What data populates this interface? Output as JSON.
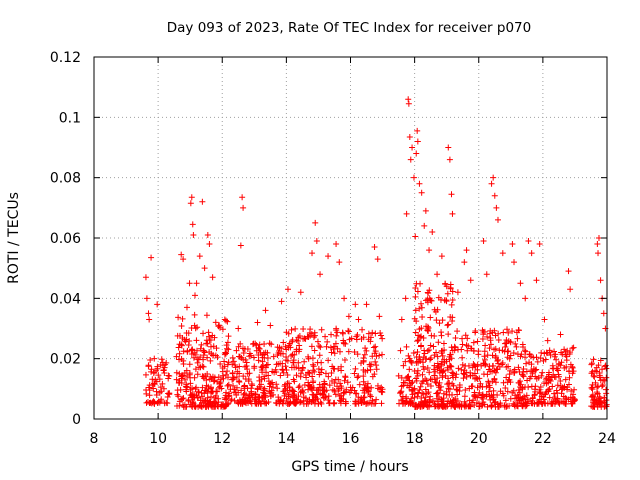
{
  "chart_data": {
    "type": "scatter",
    "title": "Day 093 of 2023, Rate Of TEC Index for receiver p070",
    "xlabel": "GPS time / hours",
    "ylabel": "ROTI / TECUs",
    "xlim": [
      8,
      24
    ],
    "ylim": [
      0,
      0.12
    ],
    "xticks": [
      8,
      10,
      12,
      14,
      16,
      18,
      20,
      22,
      24
    ],
    "xtick_labels": [
      "8",
      "10",
      "12",
      "14",
      "16",
      "18",
      "20",
      "22",
      "24"
    ],
    "yticks": [
      0,
      0.02,
      0.04,
      0.06,
      0.08,
      0.1,
      0.12
    ],
    "ytick_labels": [
      "0",
      "0.02",
      "0.04",
      "0.06",
      "0.08",
      "0.1",
      "0.12"
    ],
    "grid": true,
    "marker": "plus",
    "color": "#ff0000",
    "series": [
      {
        "name": "ROTI",
        "points": [
          [
            9.62,
            0.047
          ],
          [
            9.65,
            0.04
          ],
          [
            9.7,
            0.035
          ],
          [
            9.72,
            0.033
          ],
          [
            9.78,
            0.0535
          ],
          [
            9.88,
            0.02
          ],
          [
            9.97,
            0.038
          ],
          [
            10.72,
            0.0545
          ],
          [
            10.78,
            0.053
          ],
          [
            10.9,
            0.037
          ],
          [
            10.98,
            0.045
          ],
          [
            11.02,
            0.0715
          ],
          [
            11.05,
            0.0735
          ],
          [
            11.08,
            0.0645
          ],
          [
            11.1,
            0.061
          ],
          [
            11.15,
            0.041
          ],
          [
            11.2,
            0.045
          ],
          [
            11.3,
            0.054
          ],
          [
            11.38,
            0.072
          ],
          [
            11.45,
            0.05
          ],
          [
            11.55,
            0.061
          ],
          [
            11.6,
            0.058
          ],
          [
            11.7,
            0.047
          ],
          [
            12.08,
            0.033
          ],
          [
            12.5,
            0.03
          ],
          [
            12.58,
            0.0575
          ],
          [
            12.62,
            0.0735
          ],
          [
            12.65,
            0.07
          ],
          [
            13.1,
            0.032
          ],
          [
            13.35,
            0.036
          ],
          [
            13.5,
            0.031
          ],
          [
            13.85,
            0.039
          ],
          [
            14.05,
            0.043
          ],
          [
            14.45,
            0.042
          ],
          [
            14.8,
            0.055
          ],
          [
            14.9,
            0.065
          ],
          [
            14.95,
            0.059
          ],
          [
            15.05,
            0.048
          ],
          [
            15.3,
            0.054
          ],
          [
            15.55,
            0.058
          ],
          [
            15.65,
            0.052
          ],
          [
            15.8,
            0.04
          ],
          [
            15.95,
            0.034
          ],
          [
            16.15,
            0.038
          ],
          [
            16.25,
            0.033
          ],
          [
            16.5,
            0.038
          ],
          [
            16.75,
            0.057
          ],
          [
            16.85,
            0.053
          ],
          [
            16.9,
            0.034
          ],
          [
            17.6,
            0.033
          ],
          [
            17.72,
            0.04
          ],
          [
            17.75,
            0.068
          ],
          [
            17.8,
            0.106
          ],
          [
            17.82,
            0.1045
          ],
          [
            17.85,
            0.0935
          ],
          [
            17.88,
            0.086
          ],
          [
            17.92,
            0.09
          ],
          [
            17.98,
            0.08
          ],
          [
            18.02,
            0.0605
          ],
          [
            18.05,
            0.088
          ],
          [
            18.08,
            0.0955
          ],
          [
            18.1,
            0.092
          ],
          [
            18.15,
            0.078
          ],
          [
            18.22,
            0.075
          ],
          [
            18.3,
            0.064
          ],
          [
            18.35,
            0.069
          ],
          [
            18.45,
            0.056
          ],
          [
            18.55,
            0.062
          ],
          [
            18.7,
            0.048
          ],
          [
            18.85,
            0.054
          ],
          [
            19.0,
            0.044
          ],
          [
            19.05,
            0.09
          ],
          [
            19.1,
            0.086
          ],
          [
            19.15,
            0.0745
          ],
          [
            19.18,
            0.068
          ],
          [
            19.35,
            0.042
          ],
          [
            19.55,
            0.052
          ],
          [
            19.62,
            0.056
          ],
          [
            19.75,
            0.046
          ],
          [
            20.15,
            0.059
          ],
          [
            20.25,
            0.048
          ],
          [
            20.4,
            0.078
          ],
          [
            20.45,
            0.08
          ],
          [
            20.5,
            0.074
          ],
          [
            20.55,
            0.07
          ],
          [
            20.6,
            0.066
          ],
          [
            20.75,
            0.055
          ],
          [
            21.05,
            0.058
          ],
          [
            21.1,
            0.052
          ],
          [
            21.3,
            0.045
          ],
          [
            21.45,
            0.04
          ],
          [
            21.55,
            0.059
          ],
          [
            21.65,
            0.055
          ],
          [
            21.8,
            0.046
          ],
          [
            21.9,
            0.058
          ],
          [
            22.05,
            0.033
          ],
          [
            22.15,
            0.026
          ],
          [
            22.55,
            0.028
          ],
          [
            22.8,
            0.049
          ],
          [
            22.85,
            0.043
          ],
          [
            23.7,
            0.058
          ],
          [
            23.72,
            0.055
          ],
          [
            23.75,
            0.06
          ],
          [
            23.8,
            0.046
          ],
          [
            23.85,
            0.04
          ],
          [
            23.9,
            0.035
          ],
          [
            23.95,
            0.03
          ]
        ],
        "clusters": [
          {
            "x0": 9.62,
            "x1": 10.35,
            "ylo": 0.005,
            "yhi": 0.02,
            "count": 70
          },
          {
            "x0": 10.55,
            "x1": 12.2,
            "ylo": 0.004,
            "yhi": 0.035,
            "count": 280
          },
          {
            "x0": 12.2,
            "x1": 14.0,
            "ylo": 0.005,
            "yhi": 0.026,
            "count": 240
          },
          {
            "x0": 14.0,
            "x1": 15.2,
            "ylo": 0.005,
            "yhi": 0.03,
            "count": 180
          },
          {
            "x0": 15.2,
            "x1": 17.0,
            "ylo": 0.005,
            "yhi": 0.03,
            "count": 190
          },
          {
            "x0": 17.5,
            "x1": 18.0,
            "ylo": 0.005,
            "yhi": 0.024,
            "count": 60
          },
          {
            "x0": 18.0,
            "x1": 19.2,
            "ylo": 0.004,
            "yhi": 0.045,
            "count": 270
          },
          {
            "x0": 19.2,
            "x1": 21.5,
            "ylo": 0.004,
            "yhi": 0.03,
            "count": 320
          },
          {
            "x0": 21.5,
            "x1": 23.0,
            "ylo": 0.005,
            "yhi": 0.024,
            "count": 190
          },
          {
            "x0": 23.5,
            "x1": 24.0,
            "ylo": 0.004,
            "yhi": 0.02,
            "count": 80
          }
        ]
      }
    ]
  }
}
